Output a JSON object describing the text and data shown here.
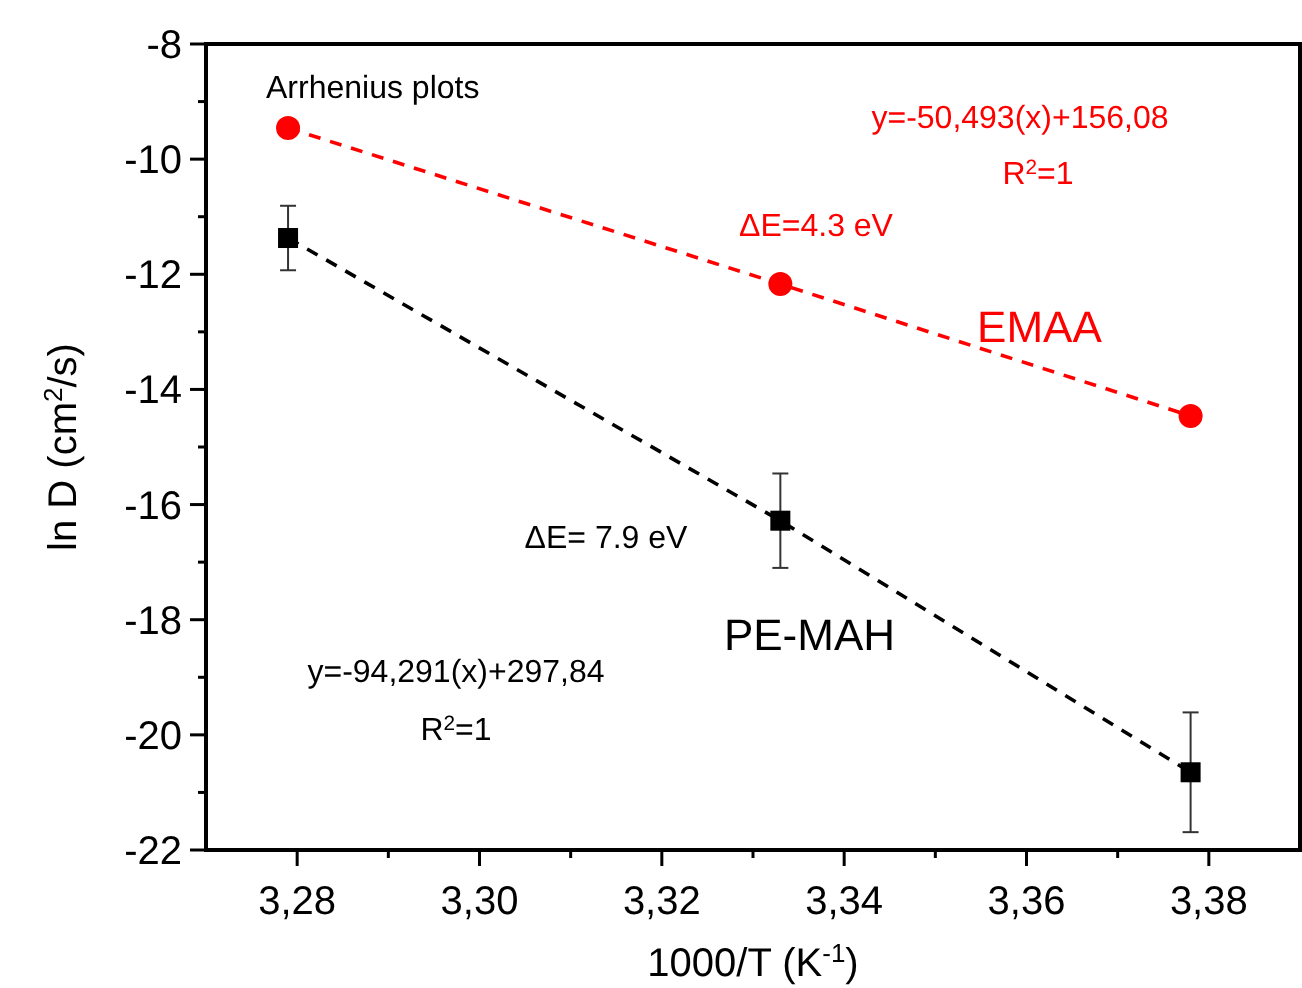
{
  "chart_data": {
    "type": "line",
    "xlabel": "1000/T (K$^{-1}$)",
    "ylabel": "ln D (cm$^{2}$/s)",
    "xlim": [
      3.27,
      3.39
    ],
    "ylim": [
      -22,
      -8
    ],
    "xticks": [
      {
        "value": 3.28,
        "label": "3,28"
      },
      {
        "value": 3.29,
        "label": null
      },
      {
        "value": 3.3,
        "label": "3,30"
      },
      {
        "value": 3.31,
        "label": null
      },
      {
        "value": 3.32,
        "label": "3,32"
      },
      {
        "value": 3.33,
        "label": null
      },
      {
        "value": 3.34,
        "label": "3,34"
      },
      {
        "value": 3.35,
        "label": null
      },
      {
        "value": 3.36,
        "label": "3,36"
      },
      {
        "value": 3.37,
        "label": null
      },
      {
        "value": 3.38,
        "label": "3,38"
      }
    ],
    "yticks": [
      -22,
      {
        "value": -21,
        "label": null
      },
      -20,
      {
        "value": -19,
        "label": null
      },
      -18,
      {
        "value": -17,
        "label": null
      },
      -16,
      {
        "value": -15,
        "label": null
      },
      -14,
      {
        "value": -13,
        "label": null
      },
      -12,
      {
        "value": -11,
        "label": null
      },
      -10,
      {
        "value": -9,
        "label": null
      },
      -8
    ],
    "line_style": "dashed",
    "grid": false,
    "series": [
      {
        "name": "EMAA",
        "color": "#ff0000",
        "marker": "circle",
        "x": [
          3.279,
          3.333,
          3.378
        ],
        "values": [
          -9.46,
          -12.17,
          -14.46
        ]
      },
      {
        "name": "PE-MAH",
        "color": "#000000",
        "marker": "square",
        "x": [
          3.279,
          3.333,
          3.378
        ],
        "values": [
          -11.37,
          -16.28,
          -20.65
        ],
        "errors": [
          0.56,
          0.82,
          1.04
        ]
      }
    ],
    "annotations": [
      "Arrhenius plots",
      "y=-50,493(x)+156,08",
      "R$^{2}$=1",
      "ΔE=4.3 eV",
      "ΔE= 7.9 eV",
      "y=-94,291(x)+297,84",
      "R$^{2}$=1"
    ]
  }
}
